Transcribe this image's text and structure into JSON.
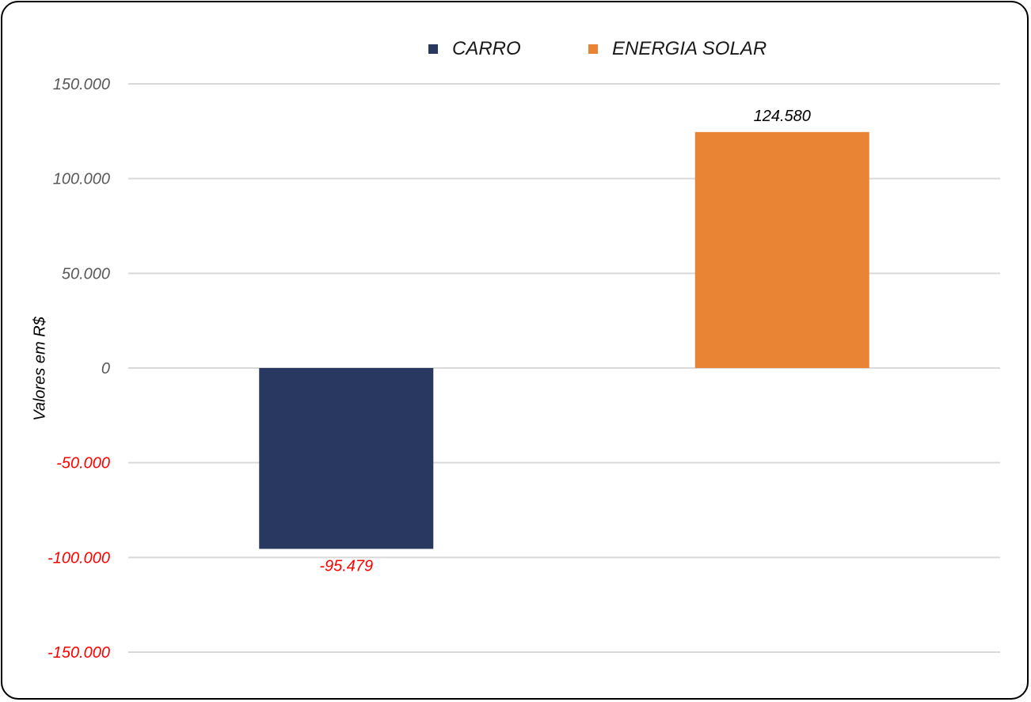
{
  "chart_data": {
    "type": "bar",
    "title": "",
    "xlabel": "",
    "ylabel": "Valores em R$",
    "ylim": [
      -150000,
      150000
    ],
    "yticks": [
      150000,
      100000,
      50000,
      0,
      -50000,
      -100000,
      -150000
    ],
    "ytick_labels": [
      "150.000",
      "100.000",
      "50.000",
      "0",
      "-50.000",
      "-100.000",
      "-150.000"
    ],
    "grid": true,
    "legend_position": "top-center",
    "categories": [
      "CARRO",
      "ENERGIA SOLAR"
    ],
    "series": [
      {
        "name": "CARRO",
        "value": -95479,
        "label": "-95.479",
        "color": "#283861"
      },
      {
        "name": "ENERGIA SOLAR",
        "value": 124580,
        "label": "124.580",
        "color": "#E88433"
      }
    ],
    "colors": {
      "negative_text": "#FF0000",
      "positive_tick_text": "#595959",
      "grid": "#D9D9D9"
    }
  }
}
